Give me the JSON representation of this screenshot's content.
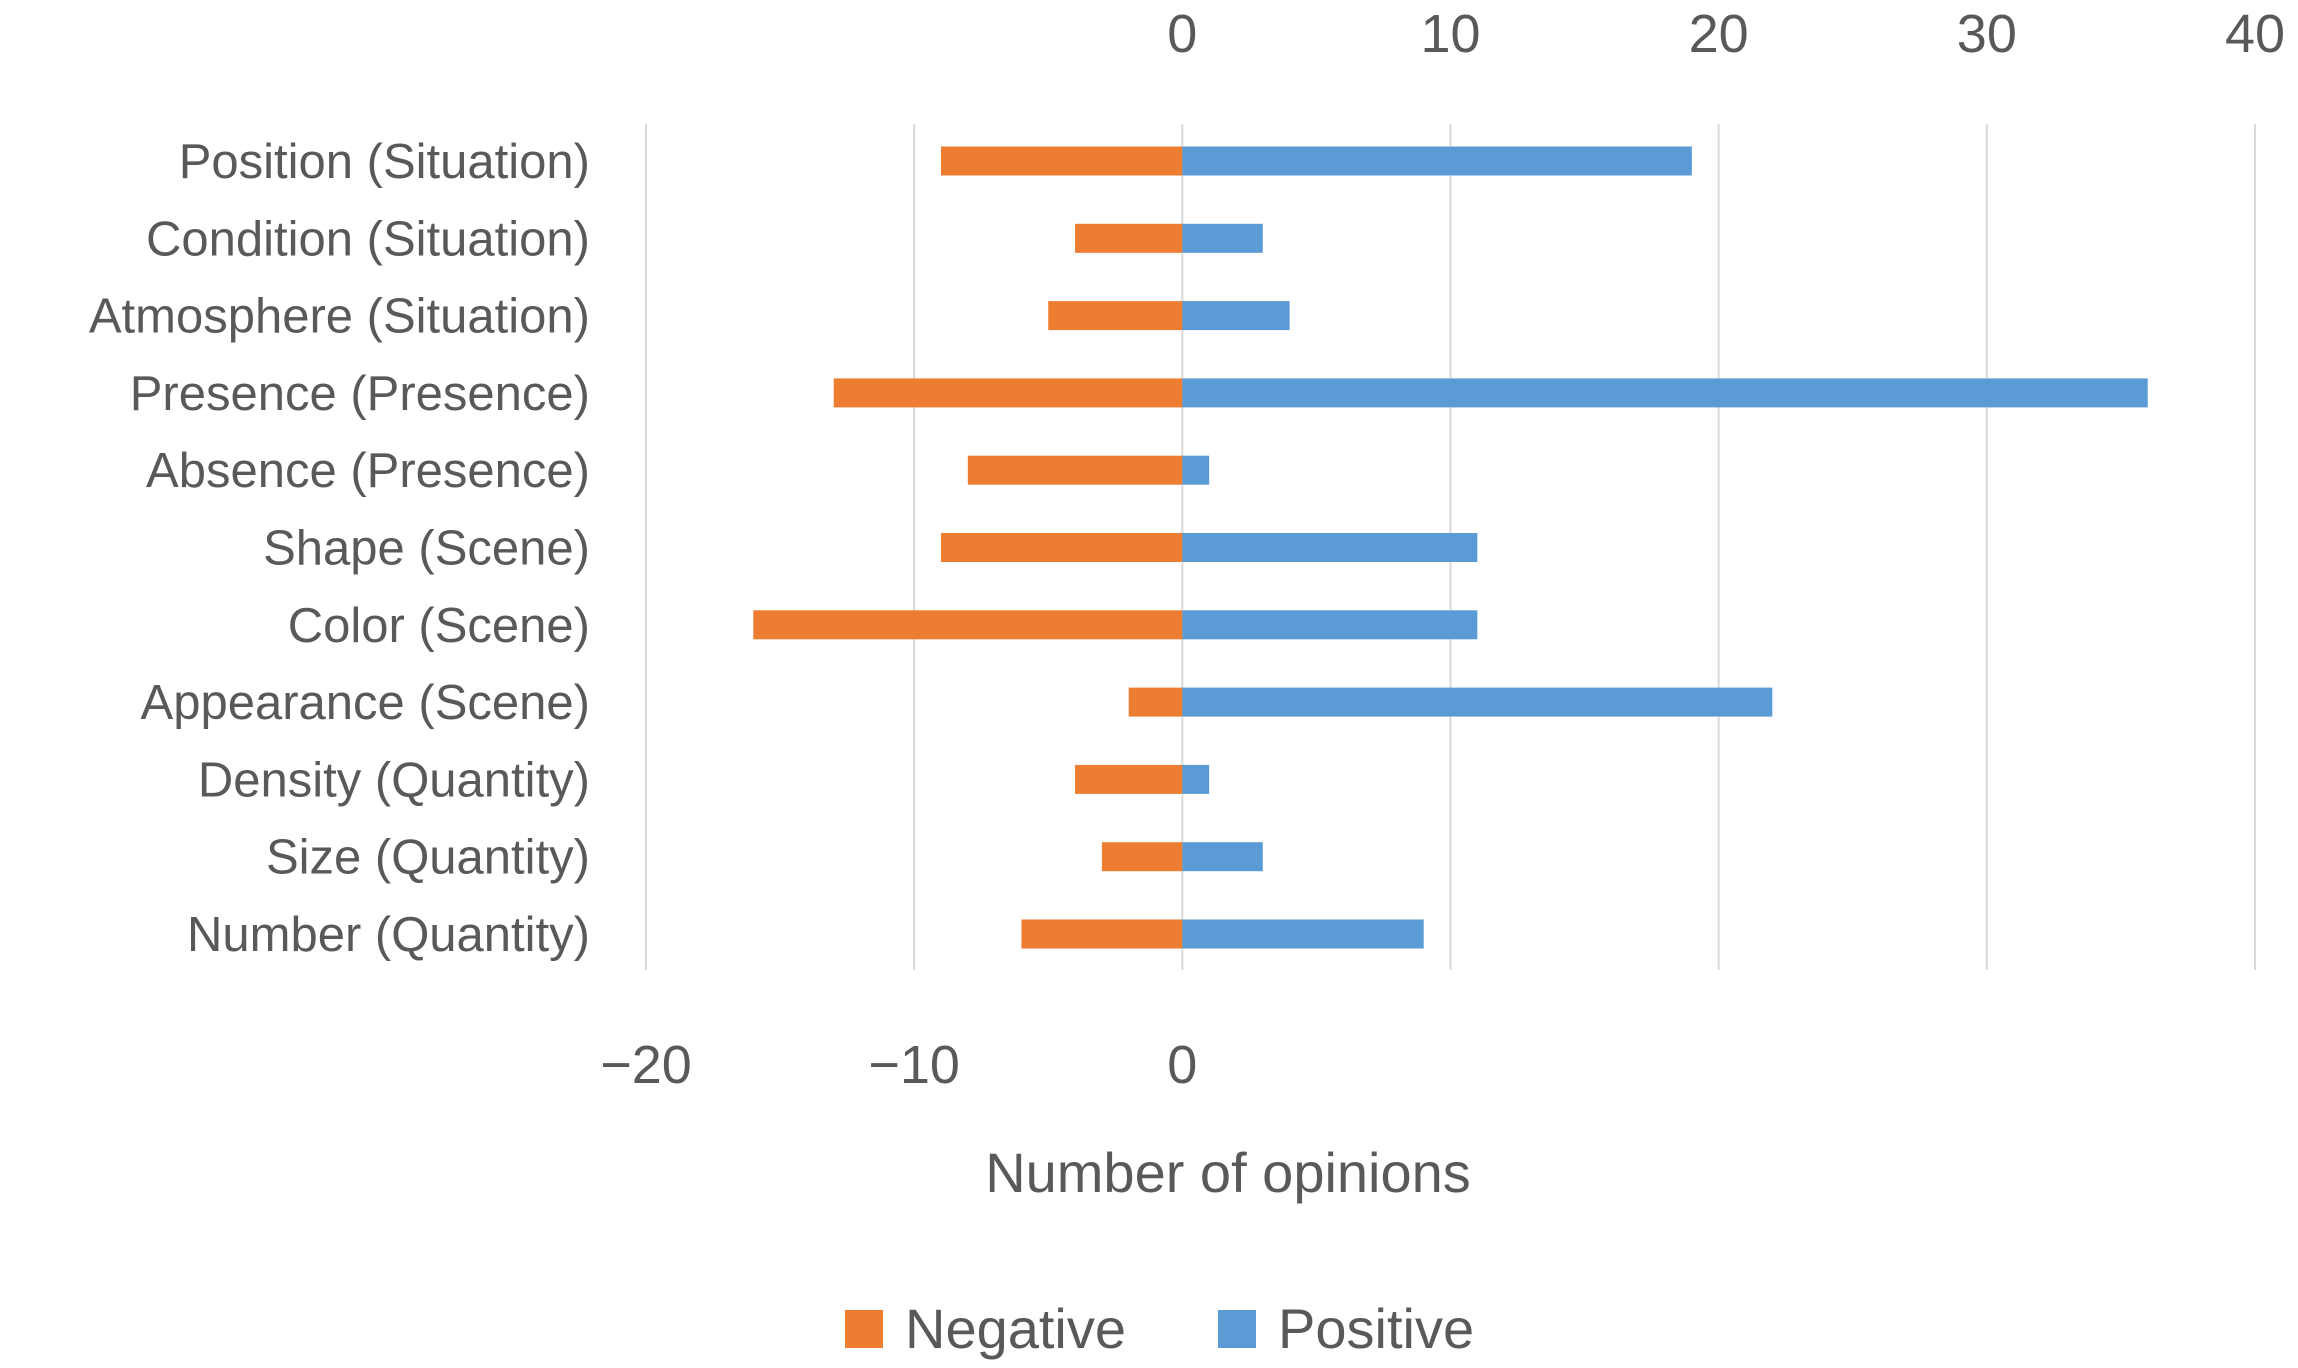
{
  "chart_data": {
    "type": "bar",
    "orientation": "horizontal",
    "stacked": "diverging",
    "title": "",
    "xlabel": "Number of opinions",
    "ylabel": "",
    "xlim": [
      -20,
      40
    ],
    "top_ticks": [
      "0",
      "10",
      "20",
      "30",
      "40"
    ],
    "top_tick_values": [
      0,
      10,
      20,
      30,
      40
    ],
    "bottom_ticks": [
      "−20",
      "−10",
      "0"
    ],
    "bottom_tick_values": [
      -20,
      -10,
      0
    ],
    "grid": true,
    "legend_position": "bottom",
    "categories": [
      "Position (Situation)",
      "Condition (Situation)",
      "Atmosphere (Situation)",
      "Presence (Presence)",
      "Absence (Presence)",
      "Shape (Scene)",
      "Color (Scene)",
      "Appearance (Scene)",
      "Density (Quantity)",
      "Size (Quantity)",
      "Number (Quantity)"
    ],
    "series": [
      {
        "name": "Negative",
        "color": "#ED7D31",
        "values": [
          -9,
          -4,
          -5,
          -13,
          -8,
          -9,
          -16,
          -2,
          -4,
          -3,
          -6
        ]
      },
      {
        "name": "Positive",
        "color": "#5B9BD5",
        "values": [
          19,
          3,
          4,
          36,
          1,
          11,
          11,
          22,
          1,
          3,
          9
        ]
      }
    ]
  }
}
